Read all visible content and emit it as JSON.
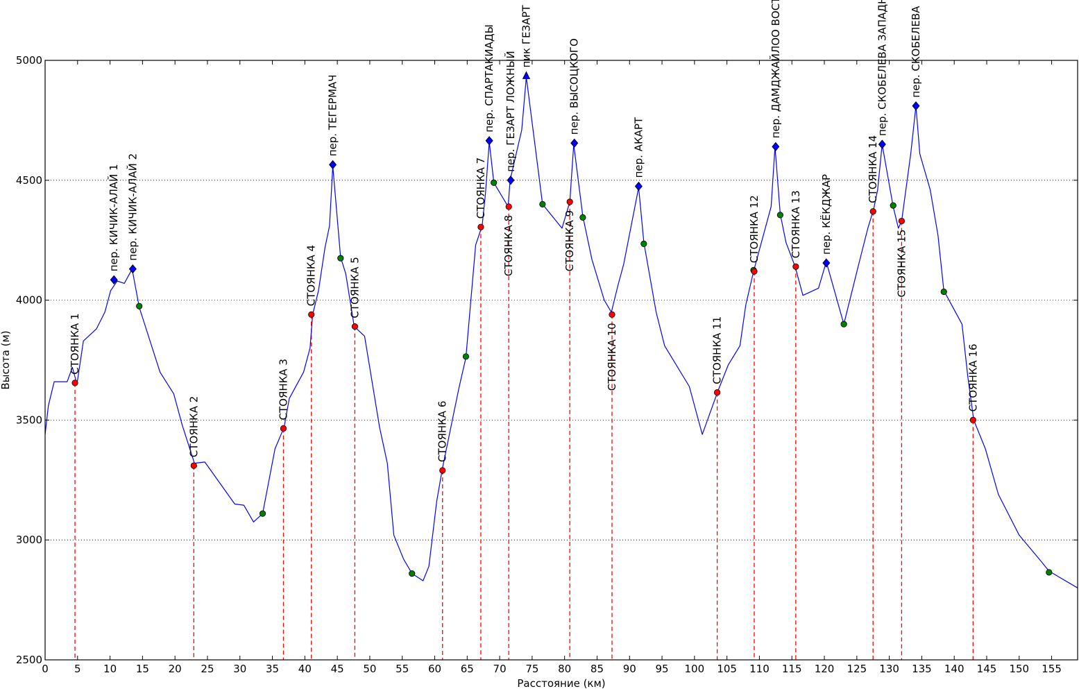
{
  "chart_data": {
    "type": "line",
    "title": "",
    "xlabel": "Расстояние (км)",
    "ylabel": "Высота (м)",
    "xlim": [
      0,
      159
    ],
    "ylim": [
      2500,
      5000
    ],
    "xticks": [
      "0",
      "5",
      "10",
      "15",
      "20",
      "25",
      "30",
      "35",
      "40",
      "45",
      "50",
      "55",
      "60",
      "65",
      "70",
      "75",
      "80",
      "85",
      "90",
      "95",
      "100",
      "105",
      "110",
      "115",
      "120",
      "125",
      "130",
      "135",
      "140",
      "145",
      "150",
      "155"
    ],
    "yticks": [
      "2500",
      "3000",
      "3500",
      "4000",
      "4500",
      "5000"
    ],
    "grid": "horizontal dotted",
    "colors": {
      "line": "#0000ff",
      "camp": "#ff0000",
      "pass": "#0000ff",
      "point": "#008000",
      "camp_line": "#ff0000"
    },
    "profile": [
      [
        0,
        3440
      ],
      [
        0.5,
        3560
      ],
      [
        1.4,
        3660
      ],
      [
        3.4,
        3660
      ],
      [
        4.2,
        3720
      ],
      [
        4.9,
        3650
      ],
      [
        5.9,
        3830
      ],
      [
        7.9,
        3880
      ],
      [
        9.2,
        3950
      ],
      [
        10.1,
        4040
      ],
      [
        11.1,
        4080
      ],
      [
        12.2,
        4070
      ],
      [
        13.4,
        4130
      ],
      [
        14.5,
        3970
      ],
      [
        17.7,
        3700
      ],
      [
        19.8,
        3610
      ],
      [
        21.1,
        3480
      ],
      [
        23,
        3320
      ],
      [
        24.6,
        3325
      ],
      [
        29.2,
        3150
      ],
      [
        30.6,
        3145
      ],
      [
        32.1,
        3075
      ],
      [
        33.5,
        3110
      ],
      [
        35.4,
        3380
      ],
      [
        36.8,
        3470
      ],
      [
        37.6,
        3590
      ],
      [
        39.8,
        3700
      ],
      [
        40.8,
        3800
      ],
      [
        41.2,
        3940
      ],
      [
        42.1,
        4040
      ],
      [
        43.1,
        4220
      ],
      [
        43.8,
        4310
      ],
      [
        44.3,
        4560
      ],
      [
        45.5,
        4180
      ],
      [
        46.3,
        4110
      ],
      [
        47.6,
        3890
      ],
      [
        49.2,
        3850
      ],
      [
        51.5,
        3470
      ],
      [
        52.7,
        3320
      ],
      [
        53.7,
        3020
      ],
      [
        55.2,
        2920
      ],
      [
        56.5,
        2860
      ],
      [
        58.2,
        2830
      ],
      [
        59.1,
        2890
      ],
      [
        60.3,
        3160
      ],
      [
        61.2,
        3300
      ],
      [
        63.7,
        3630
      ],
      [
        64.8,
        3760
      ],
      [
        66.3,
        4230
      ],
      [
        67.3,
        4310
      ],
      [
        67.8,
        4440
      ],
      [
        68.4,
        4660
      ],
      [
        69.1,
        4490
      ],
      [
        71.3,
        4390
      ],
      [
        71.6,
        4500
      ],
      [
        73.4,
        4710
      ],
      [
        74.1,
        4930
      ],
      [
        76.6,
        4400
      ],
      [
        79.6,
        4300
      ],
      [
        80.8,
        4410
      ],
      [
        81.4,
        4650
      ],
      [
        82.8,
        4350
      ],
      [
        84.2,
        4170
      ],
      [
        86.1,
        4000
      ],
      [
        87.2,
        3950
      ],
      [
        88.2,
        4060
      ],
      [
        89.1,
        4150
      ],
      [
        91.4,
        4470
      ],
      [
        92.2,
        4240
      ],
      [
        94.1,
        3950
      ],
      [
        95.4,
        3810
      ],
      [
        99.2,
        3640
      ],
      [
        101.2,
        3440
      ],
      [
        103.6,
        3620
      ],
      [
        105.2,
        3730
      ],
      [
        107,
        3810
      ],
      [
        107.9,
        3980
      ],
      [
        109.1,
        4120
      ],
      [
        111.8,
        4390
      ],
      [
        112.4,
        4640
      ],
      [
        113.2,
        4360
      ],
      [
        114.1,
        4240
      ],
      [
        115.5,
        4140
      ],
      [
        116.7,
        4020
      ],
      [
        119.1,
        4050
      ],
      [
        120.3,
        4160
      ],
      [
        123,
        3900
      ],
      [
        125.2,
        4140
      ],
      [
        126.7,
        4300
      ],
      [
        127.6,
        4380
      ],
      [
        128.2,
        4460
      ],
      [
        128.9,
        4650
      ],
      [
        130.6,
        4390
      ],
      [
        131.4,
        4300
      ],
      [
        131.9,
        4330
      ],
      [
        133.3,
        4610
      ],
      [
        134.1,
        4810
      ],
      [
        134.7,
        4610
      ],
      [
        136.3,
        4460
      ],
      [
        137.5,
        4270
      ],
      [
        138.4,
        4040
      ],
      [
        141.2,
        3900
      ],
      [
        142.1,
        3680
      ],
      [
        143,
        3500
      ],
      [
        144.8,
        3380
      ],
      [
        146.8,
        3190
      ],
      [
        150,
        3020
      ],
      [
        153.4,
        2910
      ],
      [
        154.6,
        2870
      ],
      [
        159,
        2800
      ]
    ],
    "camps": [
      {
        "x": 4.6,
        "y": 3655,
        "label": "СТОЯНКА 1",
        "pos": "above"
      },
      {
        "x": 22.9,
        "y": 3310,
        "label": "СТОЯНКА 2",
        "pos": "above"
      },
      {
        "x": 36.7,
        "y": 3465,
        "label": "СТОЯНКА 3",
        "pos": "above"
      },
      {
        "x": 41,
        "y": 3940,
        "label": "СТОЯНКА 4",
        "pos": "above"
      },
      {
        "x": 47.7,
        "y": 3890,
        "label": "СТОЯНКА 5",
        "pos": "above"
      },
      {
        "x": 61.2,
        "y": 3290,
        "label": "СТОЯНКА 6",
        "pos": "above"
      },
      {
        "x": 67.1,
        "y": 4305,
        "label": "СТОЯНКА 7",
        "pos": "above"
      },
      {
        "x": 71.4,
        "y": 4390,
        "label": "СТОЯНКА 8",
        "pos": "below"
      },
      {
        "x": 80.8,
        "y": 4410,
        "label": "СТОЯНКА 9",
        "pos": "below"
      },
      {
        "x": 87.3,
        "y": 3940,
        "label": "СТОЯНКА 10",
        "pos": "below"
      },
      {
        "x": 103.5,
        "y": 3615,
        "label": "СТОЯНКА 11",
        "pos": "above"
      },
      {
        "x": 109.2,
        "y": 4120,
        "label": "СТОЯНКА 12",
        "pos": "above"
      },
      {
        "x": 115.6,
        "y": 4140,
        "label": "СТОЯНКА 13",
        "pos": "above"
      },
      {
        "x": 127.5,
        "y": 4370,
        "label": "СТОЯНКА 14",
        "pos": "above"
      },
      {
        "x": 131.9,
        "y": 4330,
        "label": "СТОЯНКА 15",
        "pos": "below"
      },
      {
        "x": 142.9,
        "y": 3500,
        "label": "СТОЯНКА 16",
        "pos": "above"
      }
    ],
    "passes": [
      {
        "x": 10.6,
        "y": 4085,
        "label": "пер. КИЧИК-АЛАЙ 1",
        "marker": "diamond"
      },
      {
        "x": 13.5,
        "y": 4130,
        "label": "пер. КИЧИК-АЛАЙ 2",
        "marker": "diamond"
      },
      {
        "x": 44.3,
        "y": 4565,
        "label": "пер. ТЕГЕРМАЧ",
        "marker": "diamond"
      },
      {
        "x": 68.4,
        "y": 4665,
        "label": "пер. СПАРТАКИАДЫ",
        "marker": "diamond"
      },
      {
        "x": 71.7,
        "y": 4500,
        "label": "пер. ГЕЗАРТ ЛОЖНЫЙ",
        "marker": "diamond"
      },
      {
        "x": 74.1,
        "y": 4935,
        "label": "пик ГЕЗАРТ",
        "marker": "triangle"
      },
      {
        "x": 81.5,
        "y": 4655,
        "label": "пер. ВЫСОЦКОГО",
        "marker": "diamond"
      },
      {
        "x": 91.4,
        "y": 4475,
        "label": "пер. АКАРТ",
        "marker": "diamond"
      },
      {
        "x": 112.5,
        "y": 4640,
        "label": "пер. ДАМДЖАЙЛОО ВОСТОЧНЫЙ",
        "marker": "diamond"
      },
      {
        "x": 120.3,
        "y": 4155,
        "label": "пер. КЁКДЖАР",
        "marker": "diamond"
      },
      {
        "x": 128.9,
        "y": 4650,
        "label": "пер. СКОБЕЛЕВА ЗАПАДНЫЙ",
        "marker": "diamond"
      },
      {
        "x": 134.1,
        "y": 4810,
        "label": "пер. СКОБЕЛЕВА",
        "marker": "diamond"
      }
    ],
    "points": [
      [
        14.5,
        3975
      ],
      [
        33.5,
        3110
      ],
      [
        45.5,
        4175
      ],
      [
        56.5,
        2860
      ],
      [
        64.8,
        3765
      ],
      [
        69.1,
        4490
      ],
      [
        76.6,
        4400
      ],
      [
        82.8,
        4345
      ],
      [
        92.2,
        4235
      ],
      [
        109.1,
        4125
      ],
      [
        113.2,
        4355
      ],
      [
        123,
        3900
      ],
      [
        130.6,
        4395
      ],
      [
        138.4,
        4035
      ],
      [
        154.6,
        2865
      ]
    ]
  }
}
